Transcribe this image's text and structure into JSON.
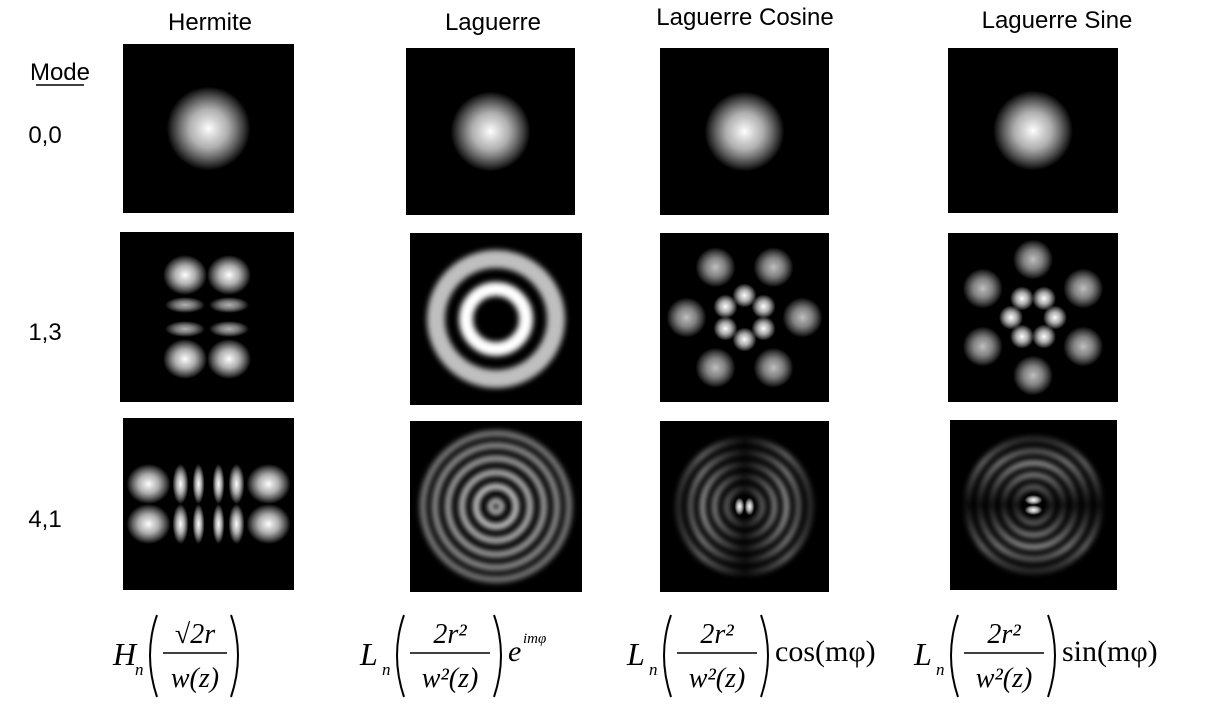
{
  "columns": [
    "Hermite",
    "Laguerre",
    "Laguerre Cosine",
    "Laguerre Sine"
  ],
  "mode_header": "Mode",
  "modes": [
    "0,0",
    "1,3",
    "4,1"
  ],
  "formulas": [
    {
      "func": "H",
      "sub": "n",
      "num": "√2r",
      "den": "w(z)"
    },
    {
      "func": "L",
      "sub": "n",
      "num": "2r²",
      "den": "w²(z)",
      "tail": "e",
      "tail_sup": "imφ"
    },
    {
      "func": "L",
      "sub": "n",
      "num": "2r²",
      "den": "w²(z)",
      "tail": "cos(mφ)"
    },
    {
      "func": "L",
      "sub": "n",
      "num": "2r²",
      "den": "w²(z)",
      "tail": "sin(mφ)"
    }
  ]
}
